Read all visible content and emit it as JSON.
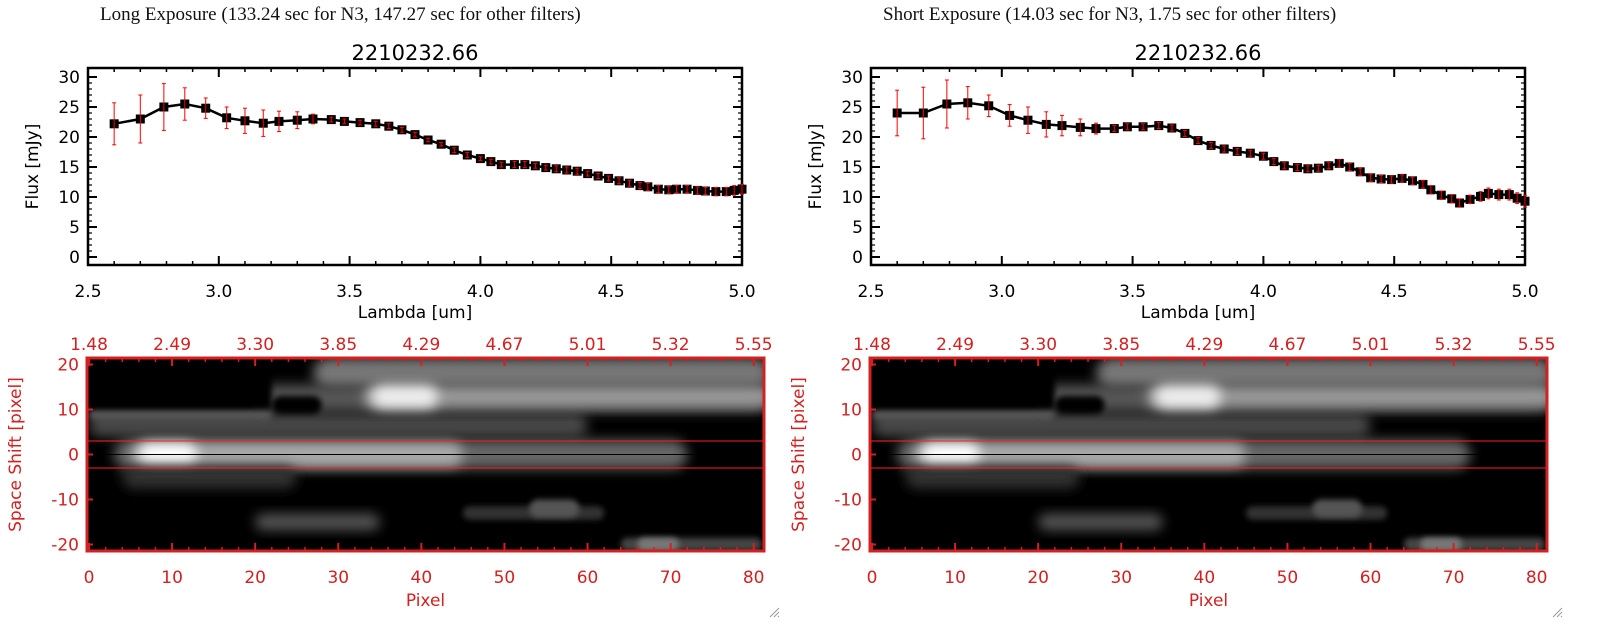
{
  "panels": [
    {
      "header": "Long Exposure (133.24 sec for N3, 147.27 sec for other filters)",
      "spectrum": {
        "type": "scatter",
        "title": "2210232.66",
        "xlabel": "Lambda [um]",
        "ylabel": "Flux [mJy]",
        "xlim": [
          2.5,
          5.0
        ],
        "ylim": [
          0,
          30
        ],
        "xticks": [
          "2.5",
          "3.0",
          "3.5",
          "4.0",
          "4.5",
          "5.0"
        ],
        "yticks": [
          "0",
          "5",
          "10",
          "15",
          "20",
          "25",
          "30"
        ],
        "x": [
          2.6,
          2.7,
          2.79,
          2.87,
          2.95,
          3.03,
          3.1,
          3.17,
          3.23,
          3.3,
          3.36,
          3.43,
          3.48,
          3.54,
          3.6,
          3.65,
          3.7,
          3.75,
          3.8,
          3.85,
          3.9,
          3.95,
          4.0,
          4.04,
          4.08,
          4.13,
          4.17,
          4.21,
          4.25,
          4.29,
          4.33,
          4.37,
          4.41,
          4.45,
          4.49,
          4.53,
          4.57,
          4.61,
          4.64,
          4.68,
          4.72,
          4.75,
          4.79,
          4.83,
          4.86,
          4.9,
          4.94,
          4.97,
          5.0
        ],
        "y": [
          22.2,
          23.0,
          25.0,
          25.5,
          24.8,
          23.2,
          22.7,
          22.3,
          22.6,
          22.8,
          23.0,
          22.9,
          22.6,
          22.4,
          22.2,
          21.8,
          21.2,
          20.4,
          19.5,
          18.8,
          17.8,
          17.0,
          16.4,
          15.9,
          15.4,
          15.4,
          15.4,
          15.2,
          14.9,
          14.7,
          14.5,
          14.3,
          13.9,
          13.5,
          13.1,
          12.7,
          12.3,
          11.9,
          11.7,
          11.3,
          11.2,
          11.3,
          11.3,
          11.1,
          11.0,
          10.9,
          10.9,
          11.1,
          11.3
        ],
        "yerr": [
          3.5,
          4.0,
          3.9,
          2.7,
          1.7,
          1.8,
          2.1,
          2.2,
          1.7,
          1.4,
          0.8,
          0.4,
          0.4,
          0.4,
          0.4,
          0.4,
          0.4,
          0.4,
          0.3,
          0.3,
          0.4,
          0.4,
          0.3,
          0.4,
          0.4,
          0.5,
          0.5,
          0.4,
          0.4,
          0.5,
          0.5,
          0.5,
          0.4,
          0.4,
          0.4,
          0.5,
          0.5,
          0.5,
          0.6,
          0.6,
          0.6,
          0.6,
          0.6,
          0.6,
          0.6,
          0.7,
          0.7,
          0.8,
          0.8
        ]
      },
      "image": {
        "type": "heatmap",
        "xlabel": "Pixel",
        "ylabel": "Space Shift [pixel]",
        "xlim": [
          0,
          81
        ],
        "ylim": [
          -21,
          21
        ],
        "xticks": [
          "0",
          "10",
          "20",
          "30",
          "40",
          "50",
          "60",
          "70",
          "80"
        ],
        "yticks": [
          "-20",
          "-10",
          "0",
          "10",
          "20"
        ],
        "top_xticks": [
          "1.48",
          "2.49",
          "3.30",
          "3.85",
          "4.29",
          "4.67",
          "5.01",
          "5.32",
          "5.55"
        ],
        "aperture_lines": [
          -3,
          3
        ],
        "center_line": 0
      }
    },
    {
      "header": "Short Exposure (14.03 sec for N3, 1.75 sec for other filters)",
      "spectrum": {
        "type": "scatter",
        "title": "2210232.66",
        "xlabel": "Lambda [um]",
        "ylabel": "Flux [mJy]",
        "xlim": [
          2.5,
          5.0
        ],
        "ylim": [
          0,
          30
        ],
        "xticks": [
          "2.5",
          "3.0",
          "3.5",
          "4.0",
          "4.5",
          "5.0"
        ],
        "yticks": [
          "0",
          "5",
          "10",
          "15",
          "20",
          "25",
          "30"
        ],
        "x": [
          2.6,
          2.7,
          2.79,
          2.87,
          2.95,
          3.03,
          3.1,
          3.17,
          3.23,
          3.3,
          3.36,
          3.43,
          3.48,
          3.54,
          3.6,
          3.65,
          3.7,
          3.75,
          3.8,
          3.85,
          3.9,
          3.95,
          4.0,
          4.04,
          4.08,
          4.13,
          4.17,
          4.21,
          4.25,
          4.29,
          4.33,
          4.37,
          4.41,
          4.45,
          4.49,
          4.53,
          4.57,
          4.61,
          4.64,
          4.68,
          4.72,
          4.75,
          4.79,
          4.83,
          4.86,
          4.9,
          4.94,
          4.97,
          5.0
        ],
        "y": [
          24.0,
          24.0,
          25.5,
          25.7,
          25.2,
          23.6,
          22.8,
          22.1,
          21.9,
          21.6,
          21.4,
          21.4,
          21.7,
          21.7,
          21.9,
          21.5,
          20.6,
          19.4,
          18.6,
          18.0,
          17.6,
          17.3,
          16.8,
          15.9,
          15.2,
          14.9,
          14.7,
          14.8,
          15.2,
          15.6,
          15.0,
          14.2,
          13.2,
          13.0,
          12.9,
          13.1,
          12.7,
          12.1,
          11.2,
          10.3,
          9.7,
          9.0,
          9.6,
          10.1,
          10.6,
          10.4,
          10.4,
          9.8,
          9.3
        ],
        "yerr": [
          3.8,
          4.3,
          4.0,
          2.7,
          1.8,
          1.8,
          2.2,
          2.1,
          1.7,
          1.4,
          0.9,
          0.5,
          0.5,
          0.5,
          0.5,
          0.5,
          0.5,
          0.5,
          0.5,
          0.5,
          0.5,
          0.5,
          0.5,
          0.5,
          0.5,
          0.5,
          0.5,
          0.5,
          0.5,
          0.6,
          0.6,
          0.6,
          0.6,
          0.6,
          0.6,
          0.6,
          0.6,
          0.6,
          0.7,
          0.7,
          0.7,
          0.7,
          0.7,
          0.8,
          0.9,
          0.9,
          0.9,
          0.9,
          1.0
        ]
      },
      "image": {
        "type": "heatmap",
        "xlabel": "Pixel",
        "ylabel": "Space Shift [pixel]",
        "xlim": [
          0,
          81
        ],
        "ylim": [
          -21,
          21
        ],
        "xticks": [
          "0",
          "10",
          "20",
          "30",
          "40",
          "50",
          "60",
          "70",
          "80"
        ],
        "yticks": [
          "-20",
          "-10",
          "0",
          "10",
          "20"
        ],
        "top_xticks": [
          "1.48",
          "2.49",
          "3.30",
          "3.85",
          "4.29",
          "4.67",
          "5.01",
          "5.32",
          "5.55"
        ],
        "aperture_lines": [
          -3,
          3
        ],
        "center_line": 0
      }
    }
  ],
  "colors": {
    "axis": "#000000",
    "error_bar": "#ff0000",
    "marker": "#000000",
    "image_axis": "#d42020",
    "aperture": "#ff2020"
  },
  "icons": {
    "resize": "resize-grip-icon"
  }
}
